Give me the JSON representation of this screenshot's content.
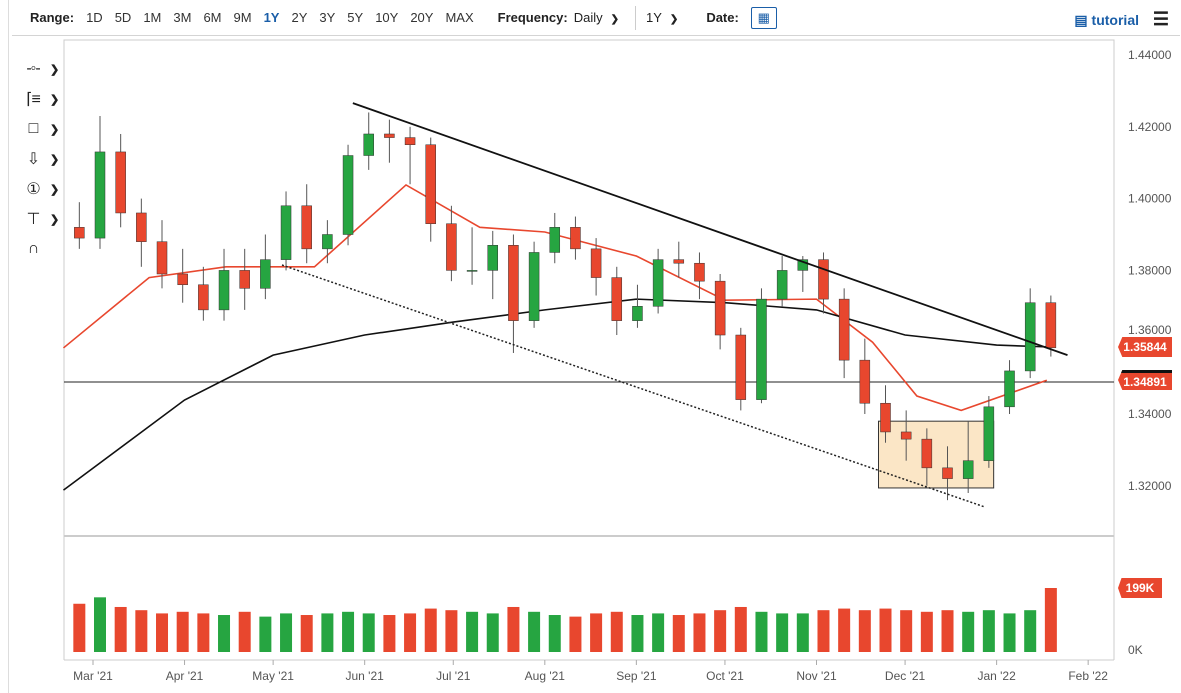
{
  "toolbar": {
    "range_label": "Range:",
    "ranges": [
      "1D",
      "5D",
      "1M",
      "3M",
      "6M",
      "9M",
      "1Y",
      "2Y",
      "3Y",
      "5Y",
      "10Y",
      "20Y",
      "MAX"
    ],
    "active_range": "1Y",
    "frequency_label": "Frequency:",
    "frequency_value": "Daily",
    "period_value": "1Y",
    "date_label": "Date:",
    "tutorial_label": "tutorial"
  },
  "drawing_tools": [
    "line-tool-icon",
    "fibonacci-tool-icon",
    "rectangle-tool-icon",
    "arrow-down-tool-icon",
    "number-marker-tool-icon",
    "measure-tool-icon",
    "magnet-icon"
  ],
  "chart_data": {
    "type": "candlestick",
    "frequency": "Daily",
    "ylim": [
      1.31,
      1.445
    ],
    "y_ticks": [
      "1.44000",
      "1.42000",
      "1.40000",
      "1.38000",
      "1.36000",
      "1.34000",
      "1.32000"
    ],
    "x_ticks": [
      {
        "date": "2021-03-01",
        "label": "Mar '21"
      },
      {
        "date": "2021-04-01",
        "label": "Apr '21"
      },
      {
        "date": "2021-05-01",
        "label": "May '21"
      },
      {
        "date": "2021-06-01",
        "label": "Jun '21"
      },
      {
        "date": "2021-07-01",
        "label": "Jul '21"
      },
      {
        "date": "2021-08-01",
        "label": "Aug '21"
      },
      {
        "date": "2021-09-01",
        "label": "Sep '21"
      },
      {
        "date": "2021-10-01",
        "label": "Oct '21"
      },
      {
        "date": "2021-11-01",
        "label": "Nov '21"
      },
      {
        "date": "2021-12-01",
        "label": "Dec '21"
      },
      {
        "date": "2022-01-01",
        "label": "Jan '22"
      },
      {
        "date": "2022-02-01",
        "label": "Feb '22"
      }
    ],
    "candles": [
      [
        "2021-02-22",
        1.392,
        1.399,
        1.386,
        1.389,
        150
      ],
      [
        "2021-03-01",
        1.389,
        1.423,
        1.386,
        1.413,
        170
      ],
      [
        "2021-03-08",
        1.413,
        1.418,
        1.392,
        1.396,
        140
      ],
      [
        "2021-03-15",
        1.396,
        1.4,
        1.381,
        1.388,
        130
      ],
      [
        "2021-03-22",
        1.388,
        1.394,
        1.375,
        1.379,
        120
      ],
      [
        "2021-03-29",
        1.379,
        1.386,
        1.371,
        1.376,
        125
      ],
      [
        "2021-04-05",
        1.376,
        1.381,
        1.366,
        1.369,
        120
      ],
      [
        "2021-04-12",
        1.369,
        1.386,
        1.366,
        1.38,
        115
      ],
      [
        "2021-04-19",
        1.38,
        1.386,
        1.369,
        1.375,
        125
      ],
      [
        "2021-04-26",
        1.375,
        1.39,
        1.372,
        1.383,
        110
      ],
      [
        "2021-05-03",
        1.383,
        1.402,
        1.38,
        1.398,
        120
      ],
      [
        "2021-05-10",
        1.398,
        1.404,
        1.382,
        1.386,
        115
      ],
      [
        "2021-05-17",
        1.386,
        1.394,
        1.382,
        1.39,
        120
      ],
      [
        "2021-05-24",
        1.39,
        1.415,
        1.387,
        1.412,
        125
      ],
      [
        "2021-05-31",
        1.412,
        1.424,
        1.408,
        1.418,
        120
      ],
      [
        "2021-06-07",
        1.418,
        1.422,
        1.41,
        1.417,
        115
      ],
      [
        "2021-06-14",
        1.417,
        1.42,
        1.404,
        1.415,
        120
      ],
      [
        "2021-06-21",
        1.415,
        1.417,
        1.388,
        1.393,
        135
      ],
      [
        "2021-06-28",
        1.393,
        1.398,
        1.377,
        1.38,
        130
      ],
      [
        "2021-07-05",
        1.38,
        1.392,
        1.376,
        1.38,
        125
      ],
      [
        "2021-07-12",
        1.38,
        1.391,
        1.372,
        1.387,
        120
      ],
      [
        "2021-07-19",
        1.387,
        1.39,
        1.357,
        1.366,
        140
      ],
      [
        "2021-07-26",
        1.366,
        1.388,
        1.364,
        1.385,
        125
      ],
      [
        "2021-08-02",
        1.385,
        1.396,
        1.382,
        1.392,
        115
      ],
      [
        "2021-08-09",
        1.392,
        1.395,
        1.383,
        1.386,
        110
      ],
      [
        "2021-08-16",
        1.386,
        1.389,
        1.373,
        1.378,
        120
      ],
      [
        "2021-08-23",
        1.378,
        1.381,
        1.362,
        1.366,
        125
      ],
      [
        "2021-08-30",
        1.366,
        1.376,
        1.364,
        1.37,
        115
      ],
      [
        "2021-09-06",
        1.37,
        1.386,
        1.368,
        1.383,
        120
      ],
      [
        "2021-09-13",
        1.383,
        1.388,
        1.378,
        1.382,
        115
      ],
      [
        "2021-09-20",
        1.382,
        1.385,
        1.372,
        1.377,
        120
      ],
      [
        "2021-09-27",
        1.377,
        1.379,
        1.358,
        1.362,
        130
      ],
      [
        "2021-10-04",
        1.362,
        1.364,
        1.341,
        1.344,
        140
      ],
      [
        "2021-10-11",
        1.344,
        1.375,
        1.343,
        1.372,
        125
      ],
      [
        "2021-10-18",
        1.372,
        1.384,
        1.37,
        1.38,
        120
      ],
      [
        "2021-10-25",
        1.38,
        1.384,
        1.374,
        1.383,
        120
      ],
      [
        "2021-11-01",
        1.383,
        1.385,
        1.368,
        1.372,
        130
      ],
      [
        "2021-11-08",
        1.372,
        1.375,
        1.35,
        1.355,
        135
      ],
      [
        "2021-11-15",
        1.355,
        1.361,
        1.34,
        1.343,
        130
      ],
      [
        "2021-11-22",
        1.343,
        1.348,
        1.332,
        1.335,
        135
      ],
      [
        "2021-11-29",
        1.335,
        1.341,
        1.327,
        1.333,
        130
      ],
      [
        "2021-12-06",
        1.333,
        1.336,
        1.32,
        1.325,
        125
      ],
      [
        "2021-12-13",
        1.325,
        1.331,
        1.316,
        1.322,
        130
      ],
      [
        "2021-12-20",
        1.322,
        1.338,
        1.318,
        1.327,
        125
      ],
      [
        "2021-12-27",
        1.327,
        1.345,
        1.325,
        1.342,
        130
      ],
      [
        "2022-01-03",
        1.342,
        1.355,
        1.34,
        1.352,
        120
      ],
      [
        "2022-01-10",
        1.352,
        1.375,
        1.35,
        1.371,
        130
      ],
      [
        "2022-01-17",
        1.371,
        1.373,
        1.356,
        1.35844,
        199
      ]
    ],
    "candle_fields": [
      "date",
      "open",
      "high",
      "low",
      "close",
      "volume_k"
    ],
    "moving_averages": [
      {
        "color": "#e8472e",
        "points": [
          [
            "2021-02-19",
            1.3584
          ],
          [
            "2021-03-20",
            1.378
          ],
          [
            "2021-04-15",
            1.381
          ],
          [
            "2021-05-15",
            1.381
          ],
          [
            "2021-06-15",
            1.4038
          ],
          [
            "2021-07-10",
            1.392
          ],
          [
            "2021-08-01",
            1.3907
          ],
          [
            "2021-09-01",
            1.384
          ],
          [
            "2021-10-01",
            1.3717
          ],
          [
            "2021-11-01",
            1.372
          ],
          [
            "2021-11-20",
            1.36
          ],
          [
            "2021-12-05",
            1.345
          ],
          [
            "2021-12-20",
            1.341
          ],
          [
            "2022-01-18",
            1.3494
          ]
        ]
      },
      {
        "color": "#111111",
        "points": [
          [
            "2021-02-19",
            1.3188
          ],
          [
            "2021-04-01",
            1.3439
          ],
          [
            "2021-05-01",
            1.3564
          ],
          [
            "2021-06-01",
            1.362
          ],
          [
            "2021-07-01",
            1.3656
          ],
          [
            "2021-08-01",
            1.369
          ],
          [
            "2021-09-01",
            1.372
          ],
          [
            "2021-10-01",
            1.371
          ],
          [
            "2021-11-01",
            1.369
          ],
          [
            "2021-12-01",
            1.362
          ],
          [
            "2022-01-01",
            1.3592
          ],
          [
            "2022-01-18",
            1.3587
          ]
        ]
      }
    ],
    "annotations": {
      "resistance_line": [
        [
          "2021-05-28",
          1.4266
        ],
        [
          "2022-01-25",
          1.3564
        ]
      ],
      "support_line": [
        [
          "2021-05-04",
          1.3815
        ],
        [
          "2021-12-28",
          1.3141
        ]
      ],
      "box": {
        "from": "2021-11-22",
        "to": "2021-12-31",
        "low": 1.3194,
        "high": 1.338,
        "fill": "#fbe6c6"
      },
      "horizontal_level": 1.34891
    },
    "last_price_label": "1.35844",
    "level_label": "1.34891",
    "volume_axis": {
      "top_label": "199K",
      "zero_label": "0K"
    },
    "up_color": "#26a541",
    "down_color": "#e8472e"
  }
}
